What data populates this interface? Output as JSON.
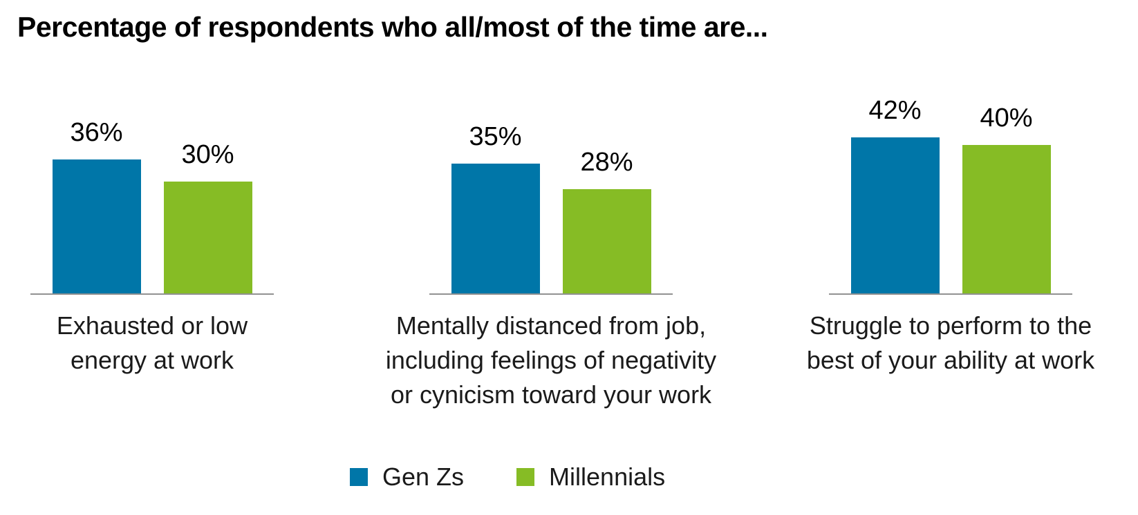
{
  "title": "Percentage of respondents who all/most of the time are...",
  "colors": {
    "genz_blue": "#0076A8",
    "millennial_green": "#86BC25",
    "axis_line": "#919191",
    "text": "#000000"
  },
  "chart_data": {
    "type": "bar",
    "title": "Percentage of respondents who all/most of the time are...",
    "unit": "%",
    "categories": [
      "Exhausted or low\nenergy at work",
      "Mentally distanced from job,\nincluding feelings of negativity\nor cynicism toward your work",
      "Struggle to perform to the\nbest of your ability at work"
    ],
    "series": [
      {
        "name": "Gen Zs",
        "color": "#0076A8",
        "values": [
          36,
          35,
          42
        ],
        "labels": [
          "36%",
          "35%",
          "42%"
        ]
      },
      {
        "name": "Millennials",
        "color": "#86BC25",
        "values": [
          30,
          28,
          40
        ],
        "labels": [
          "30%",
          "28%",
          "40%"
        ]
      }
    ],
    "ylim": [
      0,
      57
    ],
    "grid": false,
    "yaxis_visible": false,
    "legend_position": "bottom"
  }
}
